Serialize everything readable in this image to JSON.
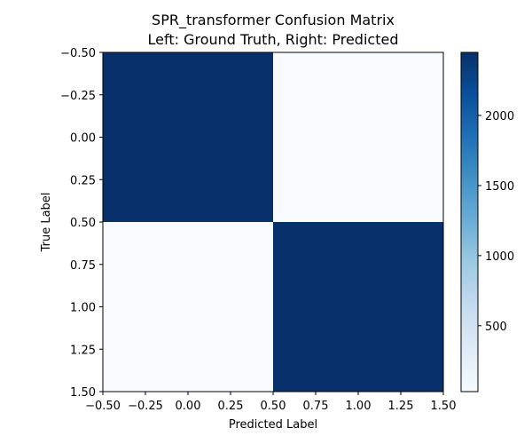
{
  "chart_data": {
    "type": "heatmap",
    "title": "SPR_transformer Confusion Matrix",
    "subtitle": "Left: Ground Truth, Right: Predicted",
    "xlabel": "Predicted Label",
    "ylabel": "True Label",
    "xlim": [
      -0.5,
      1.5
    ],
    "ylim": [
      1.5,
      -0.5
    ],
    "x_ticks": [
      -0.5,
      -0.25,
      0.0,
      0.25,
      0.5,
      0.75,
      1.0,
      1.25,
      1.5
    ],
    "x_tick_labels": [
      "−0.50",
      "−0.25",
      "0.00",
      "0.25",
      "0.50",
      "0.75",
      "1.00",
      "1.25",
      "1.50"
    ],
    "y_ticks": [
      -0.5,
      -0.25,
      0.0,
      0.25,
      0.5,
      0.75,
      1.0,
      1.25,
      1.5
    ],
    "y_tick_labels": [
      "−0.50",
      "−0.25",
      "0.00",
      "0.25",
      "0.50",
      "0.75",
      "1.00",
      "1.25",
      "1.50"
    ],
    "matrix": [
      [
        2450,
        30
      ],
      [
        30,
        2450
      ]
    ],
    "colormap": "Blues",
    "colorbar": {
      "min": 30,
      "max": 2450,
      "ticks": [
        500,
        1000,
        1500,
        2000
      ],
      "tick_labels": [
        "500",
        "1000",
        "1500",
        "2000"
      ]
    },
    "grid": false
  },
  "colors": {
    "high": "#08306b",
    "low": "#f7fbff"
  }
}
